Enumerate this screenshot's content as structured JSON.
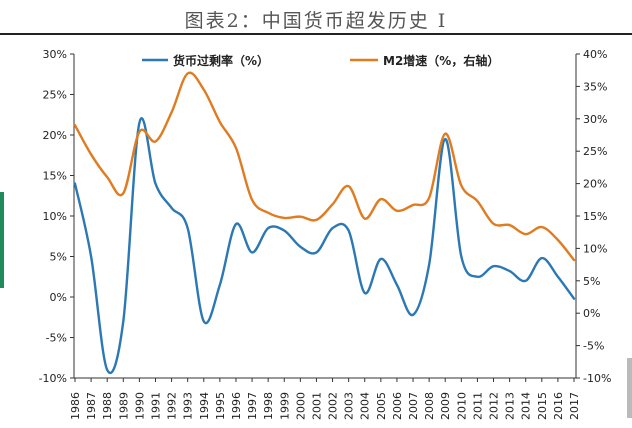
{
  "caption": "图表2：中国货币超发历史 I",
  "colors": {
    "excess": "#2b78b4",
    "m2": "#e07b20",
    "axis": "#333333"
  },
  "chart_data": {
    "type": "line",
    "title": "",
    "x": [
      "1986",
      "1987",
      "1988",
      "1989",
      "1990",
      "1991",
      "1992",
      "1993",
      "1994",
      "1995",
      "1996",
      "1997",
      "1998",
      "1999",
      "2000",
      "2001",
      "2002",
      "2003",
      "2004",
      "2005",
      "2006",
      "2007",
      "2008",
      "2009",
      "2010",
      "2011",
      "2012",
      "2013",
      "2014",
      "2015",
      "2016",
      "2017"
    ],
    "y_left": {
      "min": -10,
      "max": 30,
      "step": 5,
      "tick_labels": [
        "-10%",
        "-5%",
        "0%",
        "5%",
        "10%",
        "15%",
        "20%",
        "25%",
        "30%"
      ]
    },
    "y_right": {
      "min": -10,
      "max": 40,
      "step": 5,
      "tick_labels": [
        "-10%",
        "-5%",
        "0%",
        "5%",
        "10%",
        "15%",
        "20%",
        "25%",
        "30%",
        "35%",
        "40%"
      ]
    },
    "legend_position": "top",
    "grid": false,
    "series": [
      {
        "name": "货币过剩率（%）",
        "axis": "left",
        "color": "#2b78b4",
        "values": [
          14,
          5,
          -9,
          -3,
          21.5,
          14,
          11,
          8.5,
          -3,
          1.5,
          9,
          5.5,
          8.5,
          8.2,
          6.2,
          5.5,
          8.5,
          8.2,
          0.5,
          4.7,
          1.5,
          -2.2,
          4,
          19.5,
          5,
          2.5,
          3.8,
          3.2,
          2,
          4.8,
          2.5,
          -0.2
        ]
      },
      {
        "name": "M2增速（%，右轴）",
        "axis": "right",
        "color": "#e07b20",
        "values": [
          29,
          24.5,
          21,
          18.5,
          28,
          26.5,
          31,
          37,
          34.5,
          29.5,
          25.5,
          17.5,
          15.5,
          14.7,
          14.9,
          14.4,
          16.8,
          19.6,
          14.6,
          17.6,
          15.8,
          16.7,
          17.8,
          27.7,
          19.7,
          17.3,
          13.8,
          13.6,
          12.2,
          13.3,
          11.3,
          8.2
        ]
      }
    ]
  }
}
